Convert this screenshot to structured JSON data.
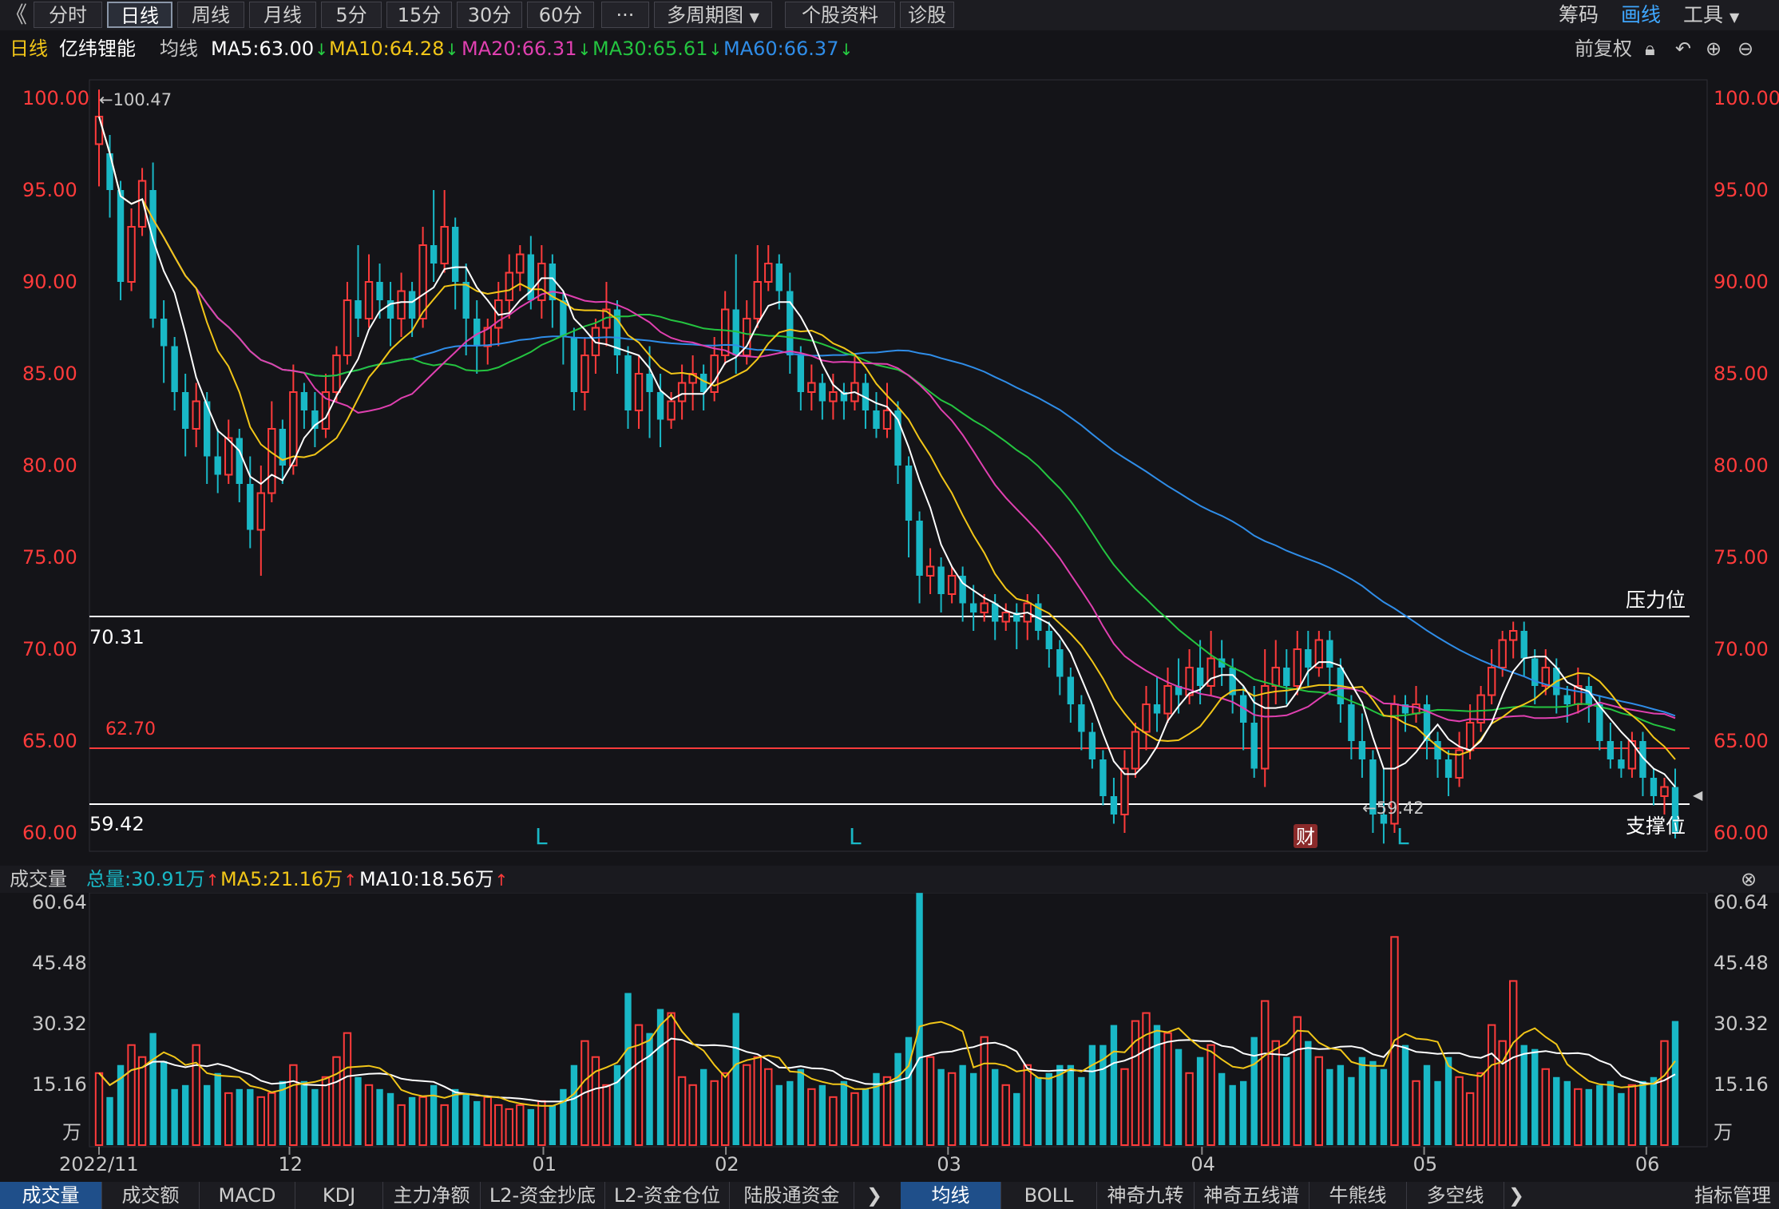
{
  "toolbar": {
    "back": "《",
    "periods": [
      "分时",
      "日线",
      "周线",
      "月线",
      "5分",
      "15分",
      "30分",
      "60分"
    ],
    "active_period": "日线",
    "more": "···",
    "multi_period": "多周期图",
    "stock_info": "个股资料",
    "diagnosis": "诊股",
    "right": [
      "筹码",
      "画线",
      "工具"
    ],
    "right_active": "画线"
  },
  "header": {
    "period_label": "日线",
    "stock_name": "亿纬锂能",
    "ma_label": "均线",
    "ma5": "MA5:63.00",
    "ma10": "MA10:64.28",
    "ma20": "MA20:66.31",
    "ma30": "MA30:65.61",
    "ma60": "MA60:66.37",
    "adjust": "前复权"
  },
  "colors": {
    "up": "#ff3b3b",
    "down": "#19b8c6",
    "ma5": "#ffffff",
    "ma10": "#f2c618",
    "ma20": "#e040b0",
    "ma30": "#24c440",
    "ma60": "#2f8de8",
    "bg": "#141418"
  },
  "price_axis": {
    "ticks": [
      "100.00",
      "95.00",
      "90.00",
      "85.00",
      "80.00",
      "75.00",
      "70.00",
      "65.00",
      "60.00"
    ]
  },
  "annotations": {
    "high_label": "←100.47",
    "low_label": "←59.42",
    "resistance_value": "70.31",
    "resistance_text": "压力位",
    "red_line_value": "62.70",
    "support_value": "59.42",
    "support_text": "支撑位",
    "L": "L",
    "cai": "财"
  },
  "volume_header": {
    "label": "成交量",
    "total": "总量:30.91万",
    "ma5": "MA5:21.16万",
    "ma10": "MA10:18.56万"
  },
  "volume_axis": {
    "ticks": [
      "60.64",
      "45.48",
      "30.32",
      "15.16"
    ],
    "unit": "万"
  },
  "date_axis": [
    "2022/11",
    "12",
    "01",
    "02",
    "03",
    "04",
    "05",
    "06"
  ],
  "bottom_tabs_left": [
    "成交量",
    "成交额",
    "MACD",
    "KDJ",
    "主力净额",
    "L2-资金抄底",
    "L2-资金仓位",
    "陆股通资金"
  ],
  "bottom_tabs_right": [
    "均线",
    "BOLL",
    "神奇九转",
    "神奇五线谱",
    "牛熊线",
    "多空线"
  ],
  "bottom_right_text": "指标管理",
  "chart_data": {
    "type": "candlestick",
    "ylim": [
      59.0,
      101.0
    ],
    "volume_ylim": [
      0,
      60.64
    ],
    "candles": [
      [
        97.5,
        99.0,
        100.47,
        95.2,
        18
      ],
      [
        97.0,
        95.0,
        98.0,
        93.5,
        12
      ],
      [
        95.0,
        90.0,
        95.5,
        89.0,
        20
      ],
      [
        90.0,
        93.0,
        94.0,
        89.5,
        25
      ],
      [
        93.0,
        95.5,
        96.2,
        92.5,
        22
      ],
      [
        95.0,
        88.0,
        96.5,
        87.5,
        28
      ],
      [
        88.0,
        86.5,
        89.0,
        84.5,
        21
      ],
      [
        86.5,
        84.0,
        87.0,
        83.0,
        14
      ],
      [
        84.0,
        82.0,
        85.0,
        80.5,
        15
      ],
      [
        82.0,
        83.5,
        84.5,
        81.0,
        25
      ],
      [
        83.5,
        80.5,
        84.0,
        79.0,
        15
      ],
      [
        80.5,
        79.5,
        82.0,
        78.5,
        18
      ],
      [
        79.5,
        81.5,
        82.5,
        79.0,
        13
      ],
      [
        81.5,
        79.0,
        82.0,
        78.0,
        14
      ],
      [
        79.0,
        76.5,
        80.5,
        75.5,
        14
      ],
      [
        76.5,
        78.5,
        80.0,
        74.0,
        12
      ],
      [
        78.5,
        82.0,
        83.5,
        78.0,
        13
      ],
      [
        82.0,
        80.0,
        82.5,
        79.0,
        16
      ],
      [
        80.0,
        84.0,
        85.5,
        79.5,
        20
      ],
      [
        84.0,
        83.0,
        84.5,
        82.0,
        16
      ],
      [
        83.0,
        82.0,
        84.0,
        81.0,
        14
      ],
      [
        82.0,
        84.0,
        85.0,
        81.5,
        17
      ],
      [
        84.0,
        86.0,
        86.5,
        83.5,
        22
      ],
      [
        86.0,
        89.0,
        90.0,
        85.5,
        28
      ],
      [
        89.0,
        88.0,
        92.0,
        87.0,
        17
      ],
      [
        88.0,
        90.0,
        91.5,
        87.5,
        15
      ],
      [
        90.0,
        89.0,
        91.0,
        88.0,
        14
      ],
      [
        89.0,
        88.0,
        90.0,
        86.5,
        13
      ],
      [
        88.0,
        89.5,
        90.5,
        87.0,
        10
      ],
      [
        89.5,
        88.0,
        90.0,
        87.0,
        12
      ],
      [
        88.0,
        92.0,
        93.0,
        87.5,
        12
      ],
      [
        92.0,
        91.0,
        95.0,
        90.0,
        15
      ],
      [
        91.0,
        93.0,
        95.0,
        90.5,
        10
      ],
      [
        93.0,
        90.0,
        93.5,
        88.5,
        14
      ],
      [
        90.0,
        88.0,
        91.0,
        86.0,
        13
      ],
      [
        88.0,
        86.5,
        89.0,
        85.0,
        11
      ],
      [
        86.5,
        87.5,
        88.0,
        85.5,
        12
      ],
      [
        87.5,
        89.0,
        90.0,
        86.5,
        10
      ],
      [
        89.0,
        90.5,
        91.5,
        88.0,
        9
      ],
      [
        90.5,
        91.5,
        92.0,
        89.5,
        10
      ],
      [
        91.5,
        89.0,
        92.5,
        88.5,
        9
      ],
      [
        89.0,
        91.0,
        92.0,
        88.0,
        11
      ],
      [
        91.0,
        89.0,
        91.5,
        87.5,
        10
      ],
      [
        89.0,
        87.0,
        89.5,
        85.5,
        14
      ],
      [
        87.0,
        84.0,
        87.5,
        83.0,
        20
      ],
      [
        84.0,
        86.0,
        87.0,
        83.0,
        26
      ],
      [
        86.0,
        87.5,
        88.0,
        85.0,
        22
      ],
      [
        87.5,
        88.5,
        90.0,
        86.5,
        15
      ],
      [
        88.5,
        86.0,
        89.0,
        85.0,
        20
      ],
      [
        86.0,
        83.0,
        86.5,
        82.0,
        38
      ],
      [
        83.0,
        85.0,
        86.0,
        82.0,
        30
      ],
      [
        85.0,
        84.0,
        86.5,
        81.5,
        28
      ],
      [
        84.0,
        82.5,
        85.0,
        81.0,
        34
      ],
      [
        82.5,
        83.5,
        84.0,
        82.0,
        33
      ],
      [
        83.5,
        84.5,
        85.5,
        82.5,
        17
      ],
      [
        84.5,
        85.0,
        86.0,
        83.0,
        15
      ],
      [
        85.0,
        84.0,
        85.5,
        83.0,
        19
      ],
      [
        84.0,
        86.0,
        87.0,
        83.5,
        16
      ],
      [
        86.0,
        88.5,
        89.5,
        85.5,
        18
      ],
      [
        88.5,
        86.0,
        91.5,
        85.0,
        33
      ],
      [
        86.0,
        88.0,
        89.0,
        85.5,
        20
      ],
      [
        88.0,
        90.0,
        92.0,
        87.5,
        22
      ],
      [
        90.0,
        91.0,
        92.0,
        89.5,
        19
      ],
      [
        91.0,
        89.5,
        91.5,
        88.5,
        15
      ],
      [
        89.5,
        86.0,
        90.5,
        85.0,
        16
      ],
      [
        86.0,
        84.0,
        86.5,
        83.0,
        19
      ],
      [
        84.0,
        84.5,
        85.5,
        83.0,
        14
      ],
      [
        84.5,
        83.5,
        85.0,
        82.5,
        15
      ],
      [
        83.5,
        84.0,
        85.0,
        82.5,
        12
      ],
      [
        84.0,
        83.5,
        84.5,
        82.5,
        16
      ],
      [
        83.5,
        84.5,
        86.0,
        83.0,
        13
      ],
      [
        84.5,
        83.0,
        85.0,
        82.0,
        14
      ],
      [
        83.0,
        82.0,
        84.0,
        81.5,
        18
      ],
      [
        82.0,
        83.0,
        84.5,
        81.5,
        17
      ],
      [
        83.0,
        80.0,
        83.5,
        79.0,
        23
      ],
      [
        80.0,
        77.0,
        80.5,
        75.0,
        27
      ],
      [
        77.0,
        74.0,
        77.5,
        72.5,
        63
      ],
      [
        74.0,
        74.5,
        75.5,
        73.0,
        22
      ],
      [
        74.5,
        73.0,
        75.0,
        72.0,
        19
      ],
      [
        73.0,
        74.0,
        74.5,
        72.5,
        18
      ],
      [
        74.0,
        72.5,
        74.5,
        71.5,
        20
      ],
      [
        72.5,
        72.0,
        73.5,
        71.0,
        18
      ],
      [
        72.0,
        72.5,
        73.0,
        71.5,
        27
      ],
      [
        72.5,
        71.5,
        73.0,
        70.5,
        19
      ],
      [
        71.5,
        72.0,
        72.5,
        71.0,
        15
      ],
      [
        72.0,
        71.5,
        72.5,
        70.0,
        13
      ],
      [
        71.5,
        72.5,
        73.0,
        70.5,
        20
      ],
      [
        72.5,
        71.0,
        73.0,
        70.5,
        17
      ],
      [
        71.0,
        70.0,
        71.5,
        69.0,
        18
      ],
      [
        70.0,
        68.5,
        70.5,
        67.5,
        20
      ],
      [
        68.5,
        67.0,
        69.0,
        66.0,
        20
      ],
      [
        67.0,
        65.5,
        67.5,
        64.5,
        17
      ],
      [
        65.5,
        64.0,
        66.0,
        63.5,
        25
      ],
      [
        64.0,
        62.0,
        64.5,
        61.5,
        25
      ],
      [
        62.0,
        61.0,
        63.0,
        60.5,
        30
      ],
      [
        61.0,
        63.5,
        64.5,
        60.0,
        19
      ],
      [
        63.5,
        65.5,
        66.0,
        63.0,
        31
      ],
      [
        65.5,
        67.0,
        68.0,
        64.5,
        33
      ],
      [
        67.0,
        66.5,
        68.5,
        65.5,
        30
      ],
      [
        66.5,
        68.0,
        69.0,
        66.0,
        28
      ],
      [
        68.0,
        67.5,
        69.5,
        66.5,
        24
      ],
      [
        67.5,
        69.0,
        70.0,
        67.0,
        18
      ],
      [
        69.0,
        68.0,
        70.5,
        67.0,
        22
      ],
      [
        68.0,
        69.5,
        71.0,
        67.5,
        25
      ],
      [
        69.5,
        69.0,
        70.5,
        68.0,
        18
      ],
      [
        69.0,
        67.5,
        69.5,
        66.5,
        15
      ],
      [
        67.5,
        66.0,
        68.0,
        64.5,
        16
      ],
      [
        66.0,
        63.5,
        68.0,
        63.0,
        27
      ],
      [
        63.5,
        68.0,
        70.0,
        62.5,
        36
      ],
      [
        68.0,
        69.0,
        70.5,
        67.0,
        26
      ],
      [
        69.0,
        68.0,
        70.0,
        67.0,
        22
      ],
      [
        68.0,
        70.0,
        71.0,
        67.5,
        32
      ],
      [
        70.0,
        69.0,
        71.0,
        68.0,
        26
      ],
      [
        69.0,
        70.5,
        71.0,
        68.5,
        22
      ],
      [
        70.5,
        69.0,
        71.0,
        67.5,
        19
      ],
      [
        69.0,
        67.0,
        69.5,
        66.0,
        20
      ],
      [
        67.0,
        65.0,
        67.5,
        64.0,
        17
      ],
      [
        65.0,
        64.0,
        66.5,
        63.0,
        22
      ],
      [
        64.0,
        61.0,
        64.5,
        60.0,
        21
      ],
      [
        61.0,
        60.5,
        63.5,
        59.42,
        19
      ],
      [
        60.5,
        67.0,
        67.5,
        60.0,
        52
      ],
      [
        67.0,
        66.5,
        67.5,
        65.5,
        25
      ],
      [
        66.5,
        67.0,
        68.0,
        66.0,
        16
      ],
      [
        67.0,
        65.0,
        67.5,
        64.0,
        20
      ],
      [
        65.0,
        64.0,
        65.5,
        63.0,
        16
      ],
      [
        64.0,
        63.0,
        64.5,
        62.0,
        22
      ],
      [
        63.0,
        64.5,
        65.5,
        62.5,
        17
      ],
      [
        64.5,
        66.0,
        67.0,
        64.0,
        13
      ],
      [
        66.0,
        67.5,
        68.0,
        65.5,
        18
      ],
      [
        67.5,
        69.0,
        70.0,
        67.0,
        30
      ],
      [
        69.0,
        70.5,
        71.0,
        68.5,
        26
      ],
      [
        70.5,
        71.0,
        71.5,
        69.5,
        41
      ],
      [
        71.0,
        69.5,
        71.5,
        68.5,
        25
      ],
      [
        69.5,
        68.0,
        70.0,
        67.0,
        24
      ],
      [
        68.0,
        69.0,
        70.0,
        67.5,
        19
      ],
      [
        69.0,
        67.5,
        69.5,
        66.5,
        17
      ],
      [
        67.5,
        67.0,
        68.0,
        66.0,
        16
      ],
      [
        67.0,
        68.0,
        69.0,
        66.5,
        14
      ],
      [
        68.0,
        67.0,
        68.5,
        66.0,
        14
      ],
      [
        67.0,
        65.0,
        67.5,
        64.5,
        15
      ],
      [
        65.0,
        64.0,
        66.0,
        63.5,
        16
      ],
      [
        64.0,
        63.5,
        65.0,
        63.0,
        13
      ],
      [
        63.5,
        65.0,
        65.5,
        63.0,
        15
      ],
      [
        65.0,
        63.0,
        65.5,
        62.0,
        16
      ],
      [
        63.0,
        62.0,
        63.5,
        61.5,
        17
      ],
      [
        62.0,
        62.5,
        63.0,
        61.0,
        26
      ],
      [
        62.5,
        60.0,
        63.5,
        59.7,
        31
      ]
    ]
  }
}
